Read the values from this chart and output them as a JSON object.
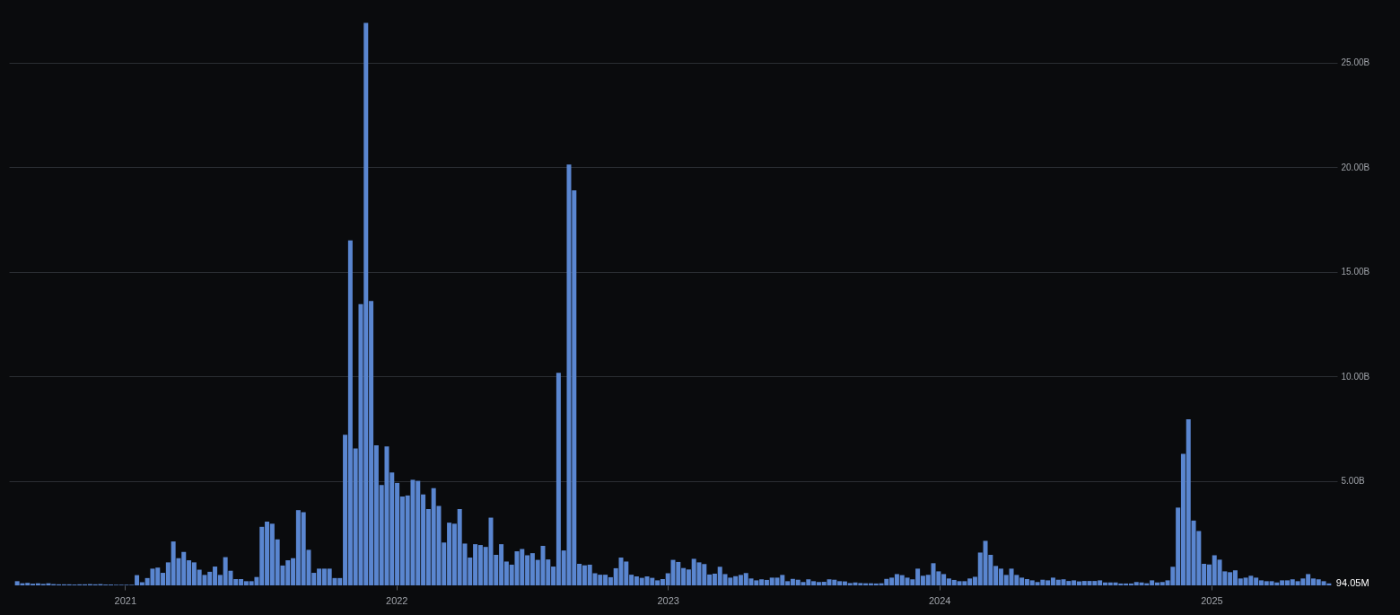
{
  "chart_data": {
    "type": "bar",
    "x": [
      "2020-08-09",
      "2020-08-16",
      "2020-08-23",
      "2020-08-30",
      "2020-09-06",
      "2020-09-13",
      "2020-09-20",
      "2020-09-27",
      "2020-10-04",
      "2020-10-11",
      "2020-10-18",
      "2020-10-25",
      "2020-11-01",
      "2020-11-08",
      "2020-11-15",
      "2020-11-22",
      "2020-11-29",
      "2020-12-06",
      "2020-12-13",
      "2020-12-20",
      "2020-12-27",
      "2021-01-03",
      "2021-01-10",
      "2021-01-17",
      "2021-01-24",
      "2021-01-31",
      "2021-02-07",
      "2021-02-14",
      "2021-02-21",
      "2021-02-28",
      "2021-03-07",
      "2021-03-14",
      "2021-03-21",
      "2021-03-28",
      "2021-04-04",
      "2021-04-11",
      "2021-04-18",
      "2021-04-25",
      "2021-05-02",
      "2021-05-09",
      "2021-05-16",
      "2021-05-23",
      "2021-05-30",
      "2021-06-06",
      "2021-06-13",
      "2021-06-20",
      "2021-06-27",
      "2021-07-04",
      "2021-07-11",
      "2021-07-18",
      "2021-07-25",
      "2021-08-01",
      "2021-08-08",
      "2021-08-15",
      "2021-08-22",
      "2021-08-29",
      "2021-09-05",
      "2021-09-12",
      "2021-09-19",
      "2021-09-26",
      "2021-10-03",
      "2021-10-10",
      "2021-10-17",
      "2021-10-24",
      "2021-10-31",
      "2021-11-07",
      "2021-11-14",
      "2021-11-21",
      "2021-11-28",
      "2021-12-05",
      "2021-12-12",
      "2021-12-19",
      "2021-12-26",
      "2022-01-02",
      "2022-01-09",
      "2022-01-16",
      "2022-01-23",
      "2022-01-30",
      "2022-02-06",
      "2022-02-13",
      "2022-02-20",
      "2022-02-27",
      "2022-03-06",
      "2022-03-13",
      "2022-03-20",
      "2022-03-27",
      "2022-04-03",
      "2022-04-10",
      "2022-04-17",
      "2022-04-24",
      "2022-05-01",
      "2022-05-08",
      "2022-05-15",
      "2022-05-22",
      "2022-05-29",
      "2022-06-05",
      "2022-06-12",
      "2022-06-19",
      "2022-06-26",
      "2022-07-03",
      "2022-07-10",
      "2022-07-17",
      "2022-07-24",
      "2022-07-31",
      "2022-08-07",
      "2022-08-14",
      "2022-08-21",
      "2022-08-28",
      "2022-09-04",
      "2022-09-11",
      "2022-09-18",
      "2022-09-25",
      "2022-10-02",
      "2022-10-09",
      "2022-10-16",
      "2022-10-23",
      "2022-10-30",
      "2022-11-06",
      "2022-11-13",
      "2022-11-20",
      "2022-11-27",
      "2022-12-04",
      "2022-12-11",
      "2022-12-18",
      "2022-12-25",
      "2023-01-01",
      "2023-01-08",
      "2023-01-15",
      "2023-01-22",
      "2023-01-29",
      "2023-02-05",
      "2023-02-12",
      "2023-02-19",
      "2023-02-26",
      "2023-03-05",
      "2023-03-12",
      "2023-03-19",
      "2023-03-26",
      "2023-04-02",
      "2023-04-09",
      "2023-04-16",
      "2023-04-23",
      "2023-04-30",
      "2023-05-07",
      "2023-05-14",
      "2023-05-21",
      "2023-05-28",
      "2023-06-04",
      "2023-06-11",
      "2023-06-18",
      "2023-06-25",
      "2023-07-02",
      "2023-07-09",
      "2023-07-16",
      "2023-07-23",
      "2023-07-30",
      "2023-08-06",
      "2023-08-13",
      "2023-08-20",
      "2023-08-27",
      "2023-09-03",
      "2023-09-10",
      "2023-09-17",
      "2023-09-24",
      "2023-10-01",
      "2023-10-08",
      "2023-10-15",
      "2023-10-22",
      "2023-10-29",
      "2023-11-05",
      "2023-11-12",
      "2023-11-19",
      "2023-11-26",
      "2023-12-03",
      "2023-12-10",
      "2023-12-17",
      "2023-12-24",
      "2023-12-31",
      "2024-01-07",
      "2024-01-14",
      "2024-01-21",
      "2024-01-28",
      "2024-02-04",
      "2024-02-11",
      "2024-02-18",
      "2024-02-25",
      "2024-03-03",
      "2024-03-10",
      "2024-03-17",
      "2024-03-24",
      "2024-03-31",
      "2024-04-07",
      "2024-04-14",
      "2024-04-21",
      "2024-04-28",
      "2024-05-05",
      "2024-05-12",
      "2024-05-19",
      "2024-05-26",
      "2024-06-02",
      "2024-06-09",
      "2024-06-16",
      "2024-06-23",
      "2024-06-30",
      "2024-07-07",
      "2024-07-14",
      "2024-07-21",
      "2024-07-28",
      "2024-08-04",
      "2024-08-11",
      "2024-08-18",
      "2024-08-25",
      "2024-09-01",
      "2024-09-08",
      "2024-09-15",
      "2024-09-22",
      "2024-09-29",
      "2024-10-06",
      "2024-10-13",
      "2024-10-20",
      "2024-10-27",
      "2024-11-03",
      "2024-11-10",
      "2024-11-17",
      "2024-11-24",
      "2024-12-01",
      "2024-12-08",
      "2024-12-15",
      "2024-12-22",
      "2024-12-29",
      "2025-01-05",
      "2025-01-12",
      "2025-01-19",
      "2025-01-26",
      "2025-02-02",
      "2025-02-09",
      "2025-02-16",
      "2025-02-23",
      "2025-03-02",
      "2025-03-09",
      "2025-03-16",
      "2025-03-23",
      "2025-03-30",
      "2025-04-06",
      "2025-04-13",
      "2025-04-20",
      "2025-04-27",
      "2025-05-04",
      "2025-05-11",
      "2025-05-18",
      "2025-05-25",
      "2025-06-01",
      "2025-06-08"
    ],
    "values": [
      0.2,
      0.1,
      0.12,
      0.08,
      0.1,
      0.07,
      0.1,
      0.06,
      0.05,
      0.05,
      0.05,
      0.04,
      0.05,
      0.05,
      0.06,
      0.05,
      0.06,
      0.04,
      0.04,
      0.03,
      0.03,
      0.03,
      0.03,
      0.49,
      0.15,
      0.35,
      0.8,
      0.85,
      0.6,
      1.1,
      2.1,
      1.3,
      1.6,
      1.2,
      1.1,
      0.75,
      0.5,
      0.65,
      0.9,
      0.5,
      1.35,
      0.7,
      0.3,
      0.3,
      0.2,
      0.2,
      0.4,
      2.8,
      3.05,
      2.95,
      2.2,
      0.95,
      1.2,
      1.3,
      3.6,
      3.5,
      1.7,
      0.6,
      0.8,
      0.8,
      0.8,
      0.35,
      0.35,
      7.2,
      16.5,
      6.55,
      13.45,
      26.9,
      13.6,
      6.7,
      4.8,
      6.65,
      5.4,
      4.9,
      4.25,
      4.3,
      5.05,
      5.0,
      4.35,
      3.65,
      4.65,
      3.8,
      2.05,
      3.0,
      2.95,
      3.65,
      2.0,
      1.33,
      1.97,
      1.93,
      1.84,
      3.24,
      1.46,
      1.97,
      1.14,
      0.99,
      1.63,
      1.74,
      1.44,
      1.54,
      1.22,
      1.89,
      1.24,
      0.9,
      10.17,
      1.67,
      20.13,
      18.9,
      1.03,
      0.96,
      0.99,
      0.58,
      0.51,
      0.51,
      0.39,
      0.82,
      1.33,
      1.14,
      0.51,
      0.43,
      0.36,
      0.43,
      0.36,
      0.24,
      0.3,
      0.58,
      1.22,
      1.12,
      0.83,
      0.76,
      1.27,
      1.1,
      1.02,
      0.52,
      0.56,
      0.89,
      0.54,
      0.37,
      0.44,
      0.5,
      0.59,
      0.33,
      0.24,
      0.29,
      0.26,
      0.37,
      0.37,
      0.5,
      0.2,
      0.31,
      0.27,
      0.16,
      0.29,
      0.2,
      0.16,
      0.17,
      0.29,
      0.27,
      0.2,
      0.19,
      0.11,
      0.14,
      0.11,
      0.1,
      0.1,
      0.09,
      0.1,
      0.31,
      0.37,
      0.54,
      0.49,
      0.37,
      0.29,
      0.8,
      0.46,
      0.5,
      1.06,
      0.67,
      0.54,
      0.33,
      0.26,
      0.2,
      0.2,
      0.33,
      0.41,
      1.57,
      2.13,
      1.46,
      0.93,
      0.8,
      0.5,
      0.8,
      0.5,
      0.37,
      0.3,
      0.24,
      0.16,
      0.27,
      0.24,
      0.37,
      0.27,
      0.29,
      0.21,
      0.24,
      0.19,
      0.21,
      0.21,
      0.21,
      0.24,
      0.14,
      0.14,
      0.14,
      0.09,
      0.09,
      0.09,
      0.16,
      0.14,
      0.1,
      0.24,
      0.14,
      0.16,
      0.24,
      0.89,
      3.72,
      6.29,
      7.95,
      3.1,
      2.6,
      1.03,
      1.0,
      1.44,
      1.23,
      0.67,
      0.63,
      0.72,
      0.33,
      0.37,
      0.46,
      0.37,
      0.24,
      0.2,
      0.2,
      0.14,
      0.24,
      0.24,
      0.29,
      0.2,
      0.33,
      0.54,
      0.33,
      0.29,
      0.2,
      0.09405
    ],
    "color": "#5a86d0",
    "xlim": [
      "2020-08-04",
      "2025-06-13"
    ],
    "xticks": [
      {
        "value": "2021-01-01",
        "label": "2021"
      },
      {
        "value": "2022-01-01",
        "label": "2022"
      },
      {
        "value": "2023-01-01",
        "label": "2023"
      },
      {
        "value": "2024-01-01",
        "label": "2024"
      },
      {
        "value": "2025-01-01",
        "label": "2025"
      }
    ],
    "ylim": [
      0,
      28
    ],
    "yticks": [
      {
        "value": 5,
        "label": "5.00B"
      },
      {
        "value": 10,
        "label": "10.00B"
      },
      {
        "value": 15,
        "label": "15.00B"
      },
      {
        "value": 20,
        "label": "20.00B"
      },
      {
        "value": 25,
        "label": "25.00B"
      }
    ],
    "grid": "y",
    "annotations": [
      {
        "text": "94.05M",
        "x": "2025-06-08",
        "y": 0.09405
      }
    ]
  }
}
